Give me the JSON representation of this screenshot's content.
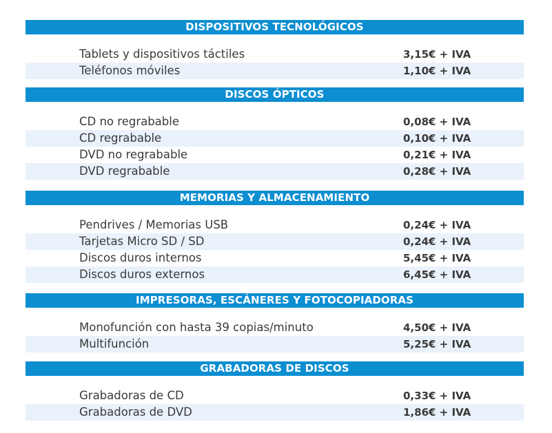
{
  "sections": [
    {
      "title": "DISPOSITIVOS TECNOLÓGICOS",
      "items": [
        {
          "label": "Tablets y dispositivos táctiles",
          "price": "3,15€ + IVA"
        },
        {
          "label": "Teléfonos móviles",
          "price": "1,10€ + IVA"
        }
      ]
    },
    {
      "title": "DISCOS ÓPTICOS",
      "items": [
        {
          "label": "CD no regrabable",
          "price": "0,08€ + IVA"
        },
        {
          "label": "CD regrabable",
          "price": "0,10€ + IVA"
        },
        {
          "label": "DVD no regrabable",
          "price": "0,21€ + IVA"
        },
        {
          "label": "DVD regrabable",
          "price": "0,28€ + IVA"
        }
      ]
    },
    {
      "title": "MEMORIAS Y ALMACENAMIENTO",
      "items": [
        {
          "label": "Pendrives / Memorias USB",
          "price": "0,24€ + IVA"
        },
        {
          "label": "Tarjetas Micro SD / SD",
          "price": "0,24€ + IVA"
        },
        {
          "label": "Discos duros internos",
          "price": "5,45€ + IVA"
        },
        {
          "label": "Discos duros externos",
          "price": "6,45€ + IVA"
        }
      ]
    },
    {
      "title": "IMPRESORAS, ESCÁNERES Y FOTOCOPIADORAS",
      "items": [
        {
          "label": "Monofunción con hasta 39 copias/minuto",
          "price": "4,50€ + IVA"
        },
        {
          "label": "Multifunción",
          "price": "5,25€ + IVA"
        }
      ]
    },
    {
      "title": "GRABADORAS DE DISCOS",
      "items": [
        {
          "label": "Grabadoras de CD",
          "price": "0,33€ + IVA"
        },
        {
          "label": "Grabadoras de DVD",
          "price": "1,86€ + IVA"
        }
      ]
    }
  ],
  "colors": {
    "header_bg": "#0c8ed1",
    "row_alt_bg": "#e9f1fa",
    "text": "#3a3a3a"
  }
}
